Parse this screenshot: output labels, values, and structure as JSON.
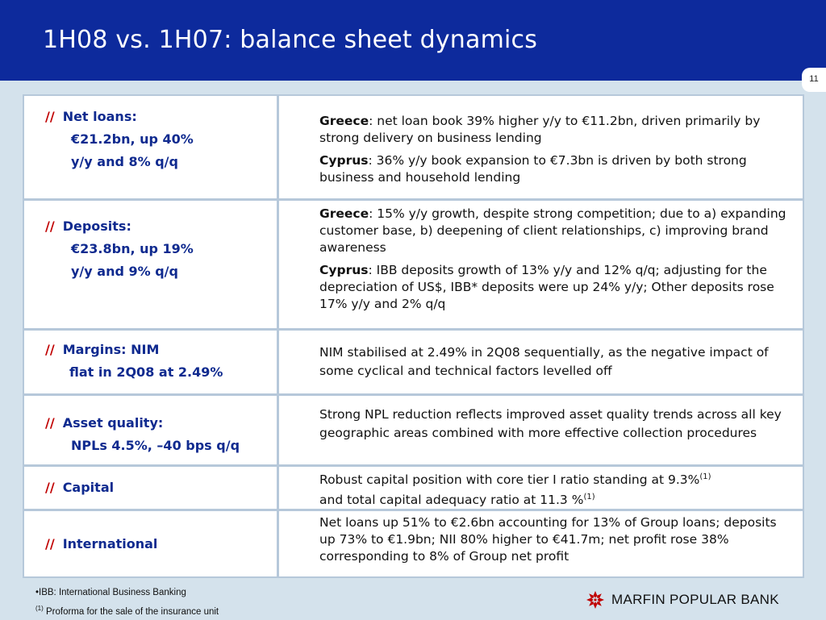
{
  "header": {
    "title": "1H08 vs. 1H07: balance sheet dynamics"
  },
  "page_number": "11",
  "rows": [
    {
      "marker": "//",
      "left": [
        "Net loans:",
        "€21.2bn, up 40%",
        " y/y and 8% q/q"
      ],
      "right": [
        {
          "bold": "Greece",
          "text": ": net loan book 39% higher y/y to €11.2bn, driven primarily by strong delivery on business lending"
        },
        {
          "bold": "Cyprus",
          "text": ": 36% y/y book expansion to €7.3bn is driven by both strong business and household lending"
        }
      ]
    },
    {
      "marker": "//",
      "left": [
        "Deposits:",
        "€23.8bn, up 19%",
        " y/y and 9% q/q"
      ],
      "right": [
        {
          "bold": "Greece",
          "text": ": 15% y/y growth, despite strong competition; due to a) expanding customer base, b) deepening of client relationships, c) improving brand awareness"
        },
        {
          "bold": "Cyprus",
          "text": ": IBB deposits growth of 13% y/y and 12% q/q; adjusting for the depreciation of US$, IBB* deposits were up 24% y/y; Other deposits rose 17% y/y and 2% q/q"
        }
      ]
    },
    {
      "marker": "//",
      "left": [
        "Margins: NIM",
        "flat in 2Q08 at 2.49%"
      ],
      "right": [
        {
          "bold": "",
          "text": "NIM stabilised at 2.49% in 2Q08 sequentially, as the negative impact of some cyclical and technical factors levelled off"
        }
      ]
    },
    {
      "marker": "//",
      "left": [
        "Asset quality:",
        " NPLs 4.5%, –40 bps q/q"
      ],
      "right": [
        {
          "bold": "",
          "text": "Strong NPL reduction reflects improved asset quality trends across all key geographic areas combined with more effective collection procedures"
        }
      ]
    },
    {
      "marker": "//",
      "left": [
        "Capital"
      ],
      "right_capital": {
        "text1": "Robust capital position with core tier I ratio standing at 9.3%",
        "sup1": "(1)",
        "text2": "and total  capital adequacy ratio at 11.3 %",
        "sup2": "(1)"
      }
    },
    {
      "marker": "//",
      "left": [
        "International"
      ],
      "right": [
        {
          "bold": "",
          "text": "Net loans up 51% to €2.6bn accounting for 13% of Group loans; deposits up 73% to €1.9bn; NII 80% higher to €41.7m; net profit rose 38% corresponding to 8% of Group net profit"
        }
      ]
    }
  ],
  "footnotes": {
    "note1": "•IBB: International Business Banking",
    "note2_sup": "(1)",
    "note2": " Proforma for the sale of the insurance unit"
  },
  "logo": {
    "text": "MARFIN POPULAR BANK",
    "icon": "marfin-logo-icon",
    "color": "#c00000"
  },
  "colors": {
    "header": "#0d2a9c",
    "accent": "#c00000",
    "label": "#0f2a8f",
    "background": "#d4e2ec"
  }
}
